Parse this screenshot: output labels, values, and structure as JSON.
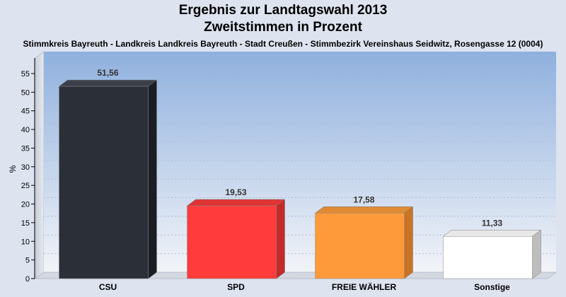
{
  "title": "Ergebnis zur Landtagswahl 2013",
  "subtitle": "Zweitstimmen in Prozent",
  "location": "Stimmkreis Bayreuth - Landkreis Landkreis Bayreuth - Stadt Creußen - Stimmbezirk Vereinshaus Seidwitz, Rosengasse 12 (0004)",
  "chart_data": {
    "type": "bar",
    "categories": [
      "CSU",
      "SPD",
      "FREIE WÄHLER",
      "Sonstige"
    ],
    "values": [
      51.56,
      19.53,
      17.58,
      11.33
    ],
    "value_labels": [
      "51,56",
      "19,53",
      "17,58",
      "11,33"
    ],
    "colors": [
      "#2b2f38",
      "#ff3b3b",
      "#ff9a3b",
      "#ffffff"
    ],
    "side_colors": [
      "#1a1d24",
      "#c32a2a",
      "#c87424",
      "#bdbdbd"
    ],
    "top_colors": [
      "#3a3f4a",
      "#e03434",
      "#e08a33",
      "#e8e8e8"
    ],
    "xlabel": "",
    "ylabel": "%",
    "ylim": [
      0,
      55
    ],
    "yticks": [
      0,
      5,
      10,
      15,
      20,
      25,
      30,
      35,
      40,
      45,
      50,
      55
    ],
    "grid": true,
    "legend": "none"
  }
}
